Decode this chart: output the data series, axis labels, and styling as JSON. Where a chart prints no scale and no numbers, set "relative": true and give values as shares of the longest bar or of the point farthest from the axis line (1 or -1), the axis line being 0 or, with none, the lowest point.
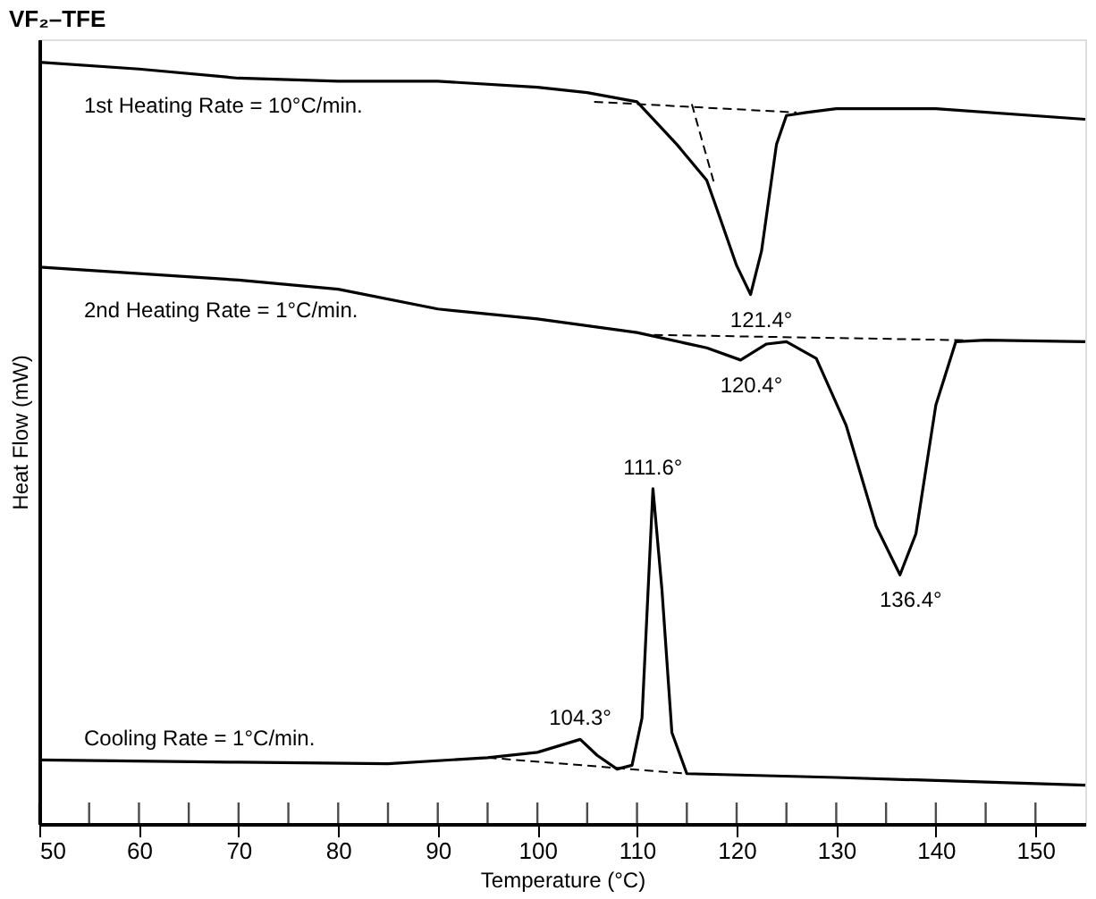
{
  "chart_data": {
    "type": "line",
    "title": "VF₂–TFE",
    "xlabel": "Temperature (°C)",
    "ylabel": "Heat Flow (mW)",
    "relative": true,
    "grid": false,
    "marker": "none",
    "xlim": [
      50,
      155
    ],
    "xticks": [
      50,
      {
        "value": 55,
        "label": null
      },
      60,
      {
        "value": 65,
        "label": null
      },
      70,
      {
        "value": 75,
        "label": null
      },
      80,
      {
        "value": 85,
        "label": null
      },
      90,
      {
        "value": 95,
        "label": null
      },
      100,
      {
        "value": 105,
        "label": null
      },
      110,
      {
        "value": 115,
        "label": null
      },
      120,
      {
        "value": 125,
        "label": null
      },
      130,
      {
        "value": 135,
        "label": null
      },
      140,
      {
        "value": 145,
        "label": null
      },
      150
    ],
    "series": [
      {
        "name": "1st Heating Rate = 10°C/min.",
        "color": "#000000",
        "line_style": "solid",
        "x": [
          50,
          60,
          70,
          80,
          90,
          100,
          105,
          110,
          114,
          117,
          118,
          120,
          121.4,
          122.5,
          124,
          125,
          127,
          130,
          140,
          155
        ],
        "values": [
          1.0,
          0.991,
          0.979,
          0.975,
          0.975,
          0.967,
          0.96,
          0.948,
          0.892,
          0.845,
          0.808,
          0.733,
          0.695,
          0.752,
          0.892,
          0.93,
          0.934,
          0.939,
          0.939,
          0.925
        ]
      },
      {
        "name": "2nd Heating Rate = 1°C/min.",
        "color": "#000000",
        "line_style": "solid",
        "x": [
          50,
          70,
          80,
          90,
          100,
          110,
          117,
          120.4,
          123,
          125,
          128,
          131,
          134,
          136.4,
          138,
          140,
          142,
          145,
          155
        ],
        "values": [
          0.731,
          0.714,
          0.702,
          0.676,
          0.663,
          0.645,
          0.625,
          0.609,
          0.63,
          0.633,
          0.611,
          0.523,
          0.391,
          0.327,
          0.381,
          0.55,
          0.633,
          0.635,
          0.633
        ]
      },
      {
        "name": "Cooling Rate = 1°C/min.",
        "color": "#000000",
        "line_style": "solid",
        "x": [
          50,
          70,
          85,
          95,
          100,
          104.3,
          106,
          108,
          109.5,
          110.5,
          111.6,
          112.5,
          113.5,
          115,
          130,
          155
        ],
        "values": [
          0.084,
          0.081,
          0.079,
          0.087,
          0.094,
          0.111,
          0.09,
          0.072,
          0.077,
          0.139,
          0.44,
          0.308,
          0.12,
          0.066,
          0.061,
          0.051
        ]
      },
      {
        "color": "#000000",
        "line_style": "dashed",
        "x": [
          105.7,
          126
        ],
        "values": [
          0.948,
          0.934
        ]
      },
      {
        "color": "#000000",
        "line_style": "dashed",
        "x": [
          115.5,
          117.7
        ],
        "values": [
          0.945,
          0.843
        ]
      },
      {
        "color": "#000000",
        "line_style": "dashed",
        "x": [
          111.7,
          143
        ],
        "values": [
          0.642,
          0.635
        ]
      },
      {
        "color": "#000000",
        "line_style": "dashed",
        "x": [
          95,
          115
        ],
        "values": [
          0.087,
          0.066
        ]
      }
    ],
    "annotations": [
      {
        "text": "121.4°",
        "x": 121.4,
        "y": 0.695
      },
      {
        "text": "120.4°",
        "x": 120.4,
        "y": 0.609
      },
      {
        "text": "136.4°",
        "x": 136.4,
        "y": 0.327
      },
      {
        "text": "111.6°",
        "x": 111.6,
        "y": 0.44
      },
      {
        "text": "104.3°",
        "x": 104.3,
        "y": 0.111
      }
    ]
  }
}
